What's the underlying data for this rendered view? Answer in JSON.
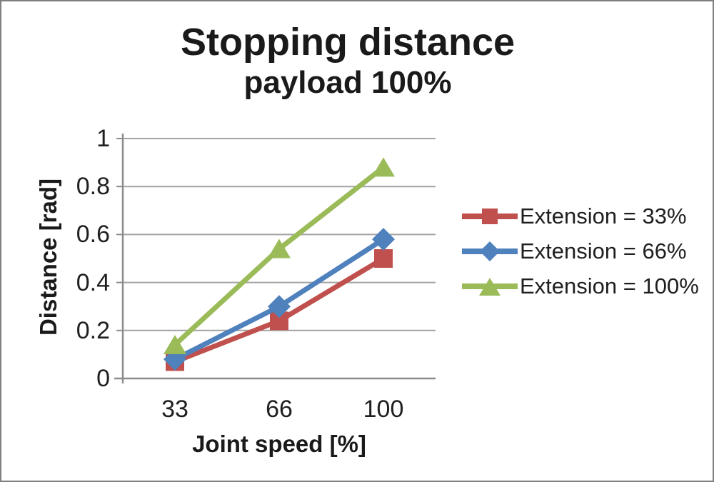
{
  "window": {
    "background_color": "#ffffff",
    "border_color": "#7f7f7f"
  },
  "chart_data": {
    "type": "line",
    "title": "Stopping distance",
    "subtitle": "payload 100%",
    "xlabel": "Joint speed [%]",
    "ylabel": "Distance [rad]",
    "categories": [
      33,
      66,
      100
    ],
    "x_tick_labels": [
      "33",
      "66",
      "100"
    ],
    "y_ticks": [
      0,
      0.2,
      0.4,
      0.6,
      0.8,
      1
    ],
    "y_tick_labels": [
      "0",
      "0.2",
      "0.4",
      "0.6",
      "0.8",
      "1"
    ],
    "ylim": [
      0,
      1
    ],
    "grid": true,
    "legend_position": "right",
    "series": [
      {
        "name": "Extension = 33%",
        "marker": "square",
        "color": "#C0504D",
        "values": [
          0.07,
          0.24,
          0.5
        ]
      },
      {
        "name": "Extension = 66%",
        "marker": "diamond",
        "color": "#4F81BD",
        "values": [
          0.08,
          0.3,
          0.58
        ]
      },
      {
        "name": "Extension = 100%",
        "marker": "triangle",
        "color": "#9BBB59",
        "values": [
          0.14,
          0.54,
          0.88
        ]
      }
    ],
    "colors": {
      "gridline": "#a3a3a3",
      "axis": "#8c8c8c",
      "text": "#1f1f1f"
    }
  }
}
